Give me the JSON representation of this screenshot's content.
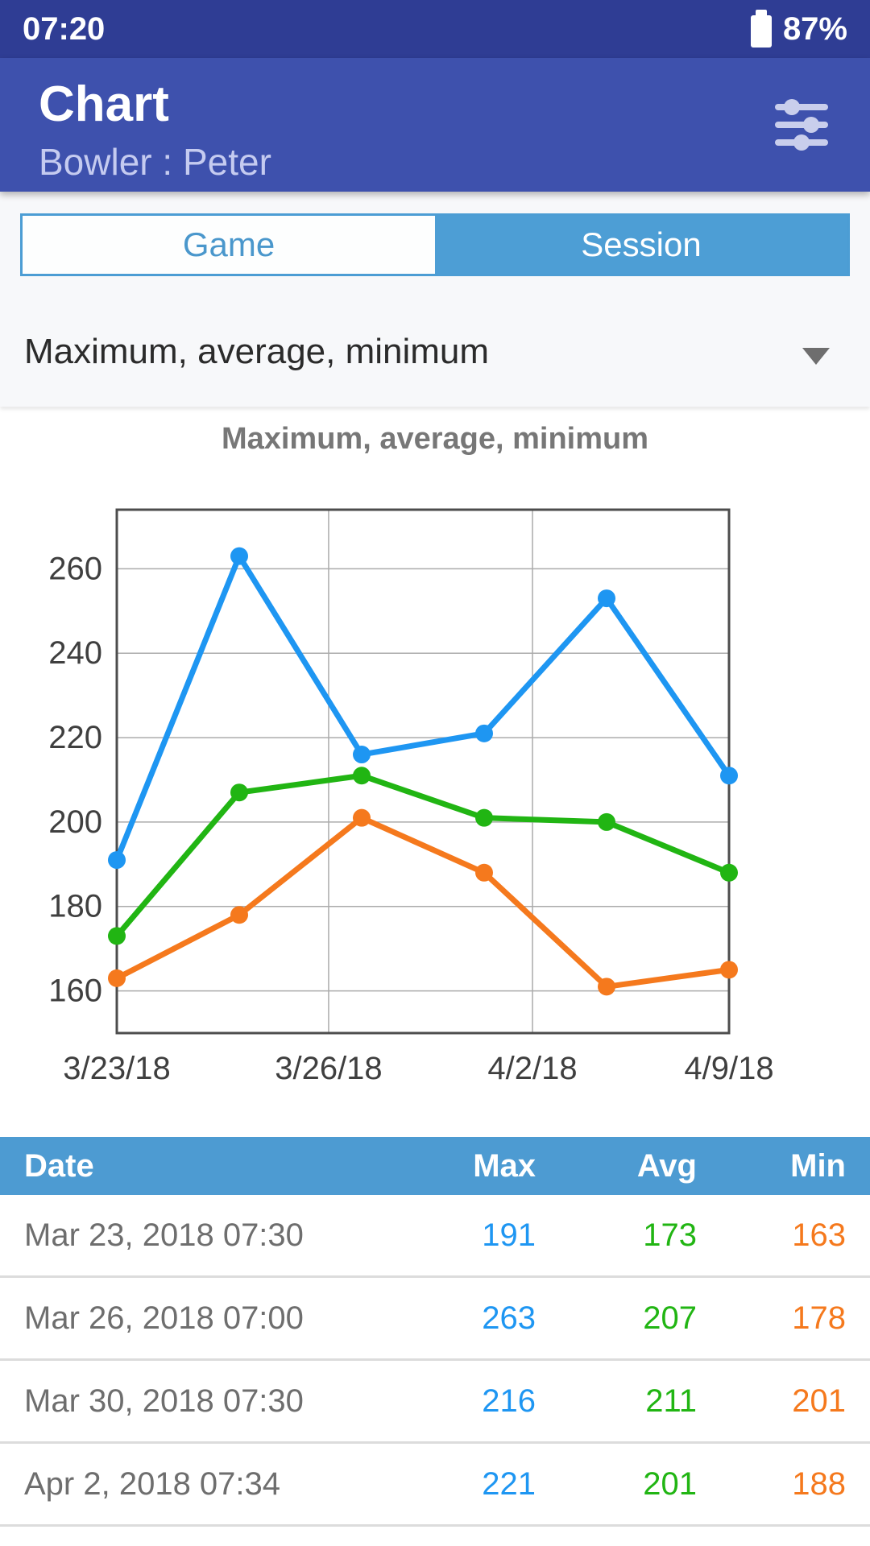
{
  "status_bar": {
    "time": "07:20",
    "battery_percent": "87%"
  },
  "header": {
    "title": "Chart",
    "subtitle": "Bowler : Peter"
  },
  "tabs": [
    {
      "label": "Game",
      "active": false
    },
    {
      "label": "Session",
      "active": true
    }
  ],
  "filter_dropdown": {
    "selected": "Maximum, average, minimum"
  },
  "chart_data": {
    "type": "line",
    "title": "Maximum, average, minimum",
    "ylim": [
      150,
      274
    ],
    "y_ticks": [
      160,
      180,
      200,
      220,
      240,
      260
    ],
    "x_ticks": [
      {
        "label": "3/23/18",
        "pos": 0.0,
        "grid": false
      },
      {
        "label": "3/26/18",
        "pos": 0.346,
        "grid": true
      },
      {
        "label": "4/2/18",
        "pos": 0.679,
        "grid": true
      },
      {
        "label": "4/9/18",
        "pos": 1.0,
        "grid": false
      }
    ],
    "grid": true,
    "legend_position": "none",
    "series": [
      {
        "name": "Max",
        "color": "#1E96F2",
        "values": [
          191,
          263,
          216,
          221,
          253,
          211
        ]
      },
      {
        "name": "Avg",
        "color": "#21B513",
        "values": [
          173,
          207,
          211,
          201,
          200,
          188
        ]
      },
      {
        "name": "Min",
        "color": "#F5791D",
        "values": [
          163,
          178,
          201,
          188,
          161,
          165
        ]
      }
    ]
  },
  "table": {
    "headers": [
      "Date",
      "Max",
      "Avg",
      "Min"
    ],
    "rows": [
      {
        "date": "Mar 23, 2018 07:30",
        "max": "191",
        "avg": "173",
        "min": "163"
      },
      {
        "date": "Mar 26, 2018 07:00",
        "max": "263",
        "avg": "207",
        "min": "178"
      },
      {
        "date": "Mar 30, 2018 07:30",
        "max": "216",
        "avg": "211",
        "min": "201"
      },
      {
        "date": "Apr 2, 2018 07:34",
        "max": "221",
        "avg": "201",
        "min": "188"
      }
    ]
  },
  "colors": {
    "status_bar_bg": "#2F3D94",
    "app_bar_bg": "#3E51AD",
    "tab_blue": "#4D9ED5",
    "table_header_bg": "#4D9BD2",
    "max_series": "#1E96F2",
    "avg_series": "#21B513",
    "min_series": "#F5791D",
    "axis_text": "#3F3F3F",
    "gridline": "#ABABAB",
    "plot_border": "#4D4D4D"
  }
}
